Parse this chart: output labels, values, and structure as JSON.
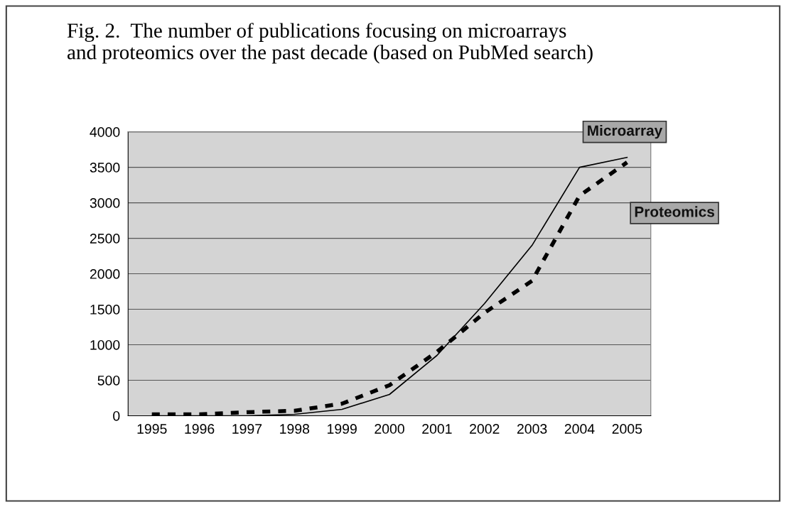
{
  "chart_data": {
    "type": "line",
    "title": "Fig. 2.  The number of publications focusing on microarrays\nand proteomics over the past decade (based on PubMed search)",
    "categories": [
      "1995",
      "1996",
      "1997",
      "1998",
      "1999",
      "2000",
      "2001",
      "2002",
      "2003",
      "2004",
      "2005"
    ],
    "series": [
      {
        "name": "Microarray",
        "color": "#000000",
        "line_style": "solid",
        "values": [
          0,
          0,
          0,
          20,
          90,
          300,
          850,
          1580,
          2400,
          3500,
          3640
        ]
      },
      {
        "name": "Proteomics",
        "color": "#000000",
        "line_style": "dashed",
        "values": [
          20,
          20,
          50,
          70,
          170,
          430,
          900,
          1450,
          1900,
          3100,
          3570
        ]
      }
    ],
    "ylim": [
      0,
      4000
    ],
    "yticks": [
      0,
      500,
      1000,
      1500,
      2000,
      2500,
      3000,
      3500,
      4000
    ],
    "grid": "y",
    "legend": false,
    "marker": "none"
  }
}
